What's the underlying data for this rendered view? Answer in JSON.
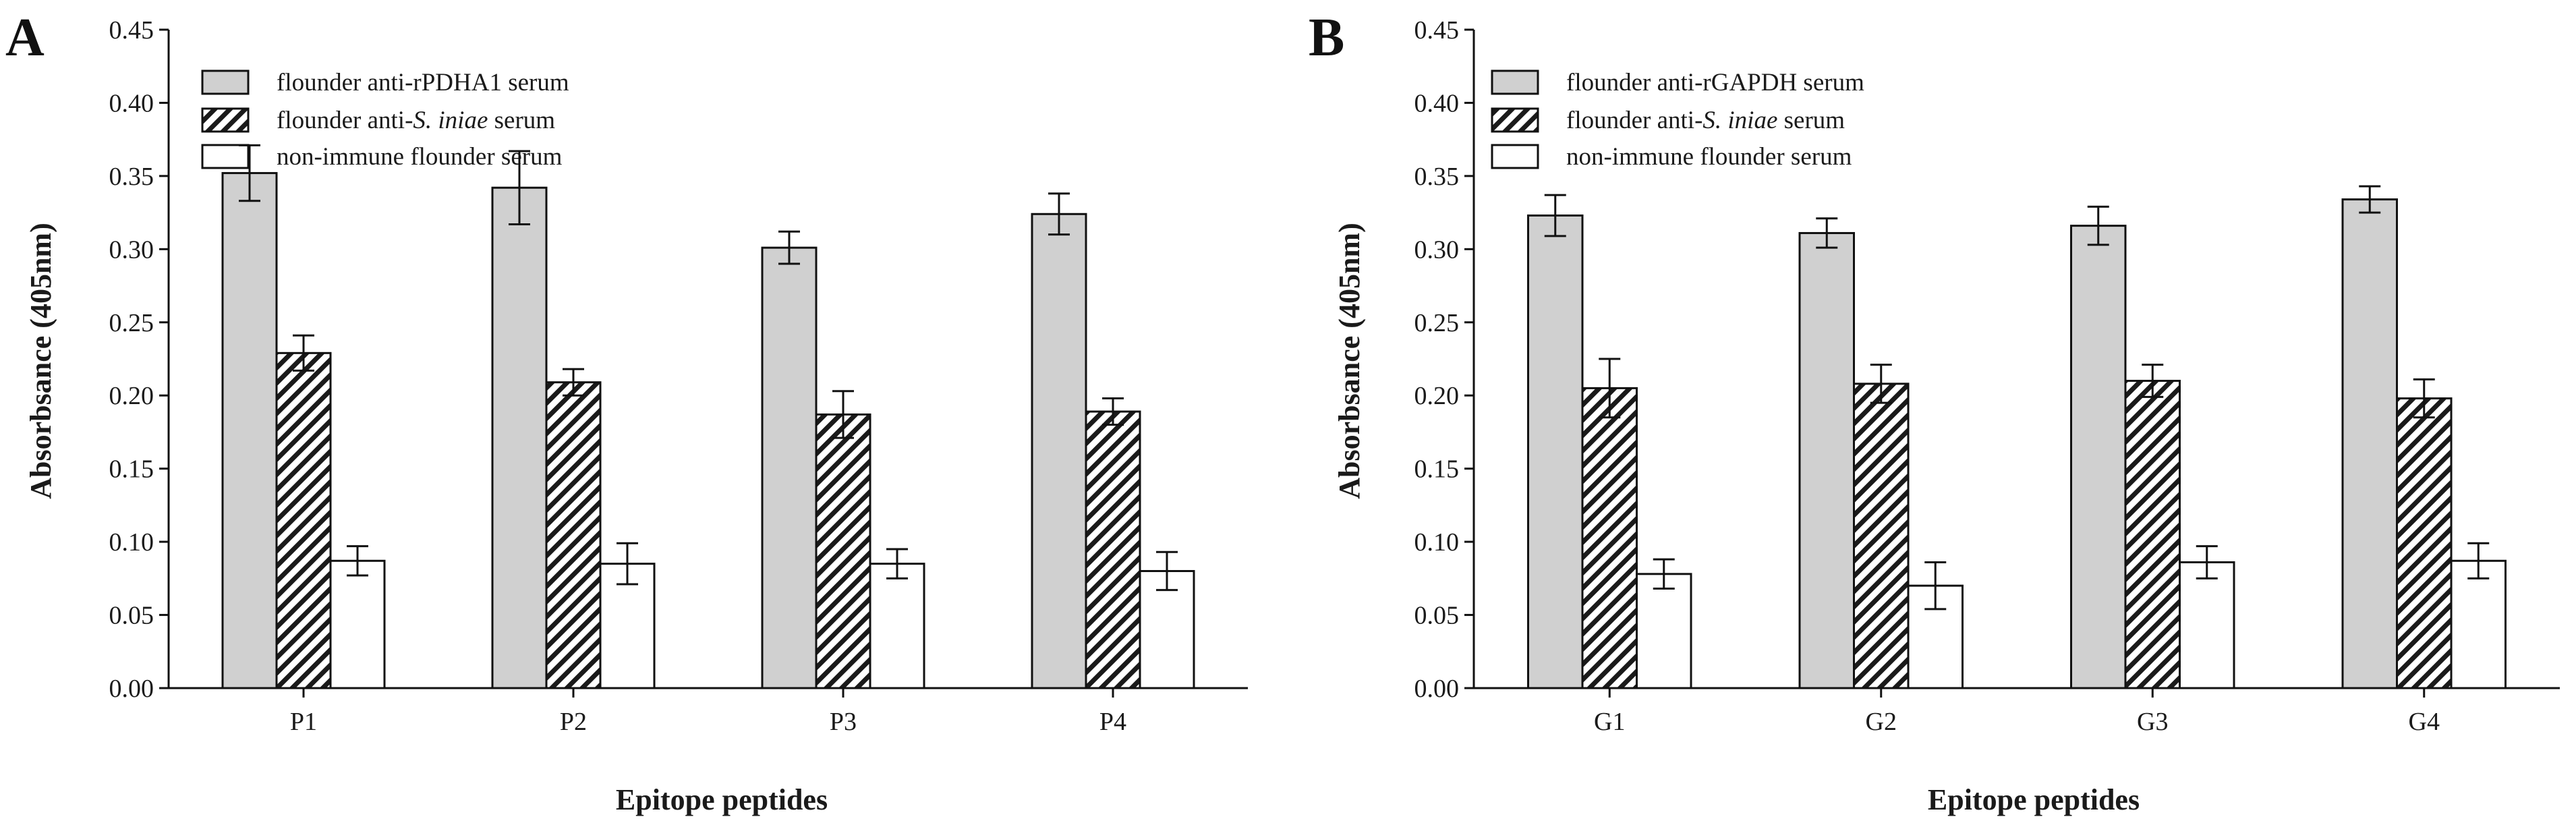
{
  "charts": [
    {
      "panel": "A",
      "ylabel": "Absorbsance (405nm)",
      "xlabel": "Epitope peptides",
      "legend": [
        {
          "pre": "flounder anti-rPDHA1 serum",
          "it": "",
          "post": "",
          "fill": "gray"
        },
        {
          "pre": "flounder anti-",
          "it": "S. iniae",
          "post": " serum",
          "fill": "hatch"
        },
        {
          "pre": "non-immune flounder serum",
          "it": "",
          "post": "",
          "fill": "white"
        }
      ]
    },
    {
      "panel": "B",
      "ylabel": "Absorbsance (405nm)",
      "xlabel": "Epitope peptides",
      "legend": [
        {
          "pre": "flounder anti-rGAPDH serum",
          "it": "",
          "post": "",
          "fill": "gray"
        },
        {
          "pre": "flounder anti-",
          "it": "S. iniae",
          "post": " serum",
          "fill": "hatch"
        },
        {
          "pre": "non-immune flounder serum",
          "it": "",
          "post": "",
          "fill": "white"
        }
      ]
    }
  ],
  "chart_data": [
    {
      "type": "bar",
      "title": "A",
      "xlabel": "Epitope peptides",
      "ylabel": "Absorbsance (405nm)",
      "ylim": [
        0,
        0.45
      ],
      "yticks": [
        "0.00",
        "0.05",
        "0.10",
        "0.15",
        "0.20",
        "0.25",
        "0.30",
        "0.35",
        "0.40",
        "0.45"
      ],
      "categories": [
        "P1",
        "P2",
        "P3",
        "P4"
      ],
      "series": [
        {
          "name": "flounder anti-rPDHA1 serum",
          "values": [
            0.352,
            0.342,
            0.301,
            0.324
          ],
          "errors": [
            0.019,
            0.025,
            0.011,
            0.014
          ]
        },
        {
          "name": "flounder anti-S. iniae serum",
          "values": [
            0.229,
            0.209,
            0.187,
            0.189
          ],
          "errors": [
            0.012,
            0.009,
            0.016,
            0.009
          ]
        },
        {
          "name": "non-immune flounder serum",
          "values": [
            0.087,
            0.085,
            0.085,
            0.08
          ],
          "errors": [
            0.01,
            0.014,
            0.01,
            0.013
          ]
        }
      ]
    },
    {
      "type": "bar",
      "title": "B",
      "xlabel": "Epitope peptides",
      "ylabel": "Absorbsance (405nm)",
      "ylim": [
        0,
        0.45
      ],
      "yticks": [
        "0.00",
        "0.05",
        "0.10",
        "0.15",
        "0.20",
        "0.25",
        "0.30",
        "0.35",
        "0.40",
        "0.45"
      ],
      "categories": [
        "G1",
        "G2",
        "G3",
        "G4"
      ],
      "series": [
        {
          "name": "flounder anti-rGAPDH serum",
          "values": [
            0.323,
            0.311,
            0.316,
            0.334
          ],
          "errors": [
            0.014,
            0.01,
            0.013,
            0.009
          ]
        },
        {
          "name": "flounder anti-S. iniae serum",
          "values": [
            0.205,
            0.208,
            0.21,
            0.198
          ],
          "errors": [
            0.02,
            0.013,
            0.011,
            0.013
          ]
        },
        {
          "name": "non-immune flounder serum",
          "values": [
            0.078,
            0.07,
            0.086,
            0.087
          ],
          "errors": [
            0.01,
            0.016,
            0.011,
            0.012
          ]
        }
      ]
    }
  ]
}
